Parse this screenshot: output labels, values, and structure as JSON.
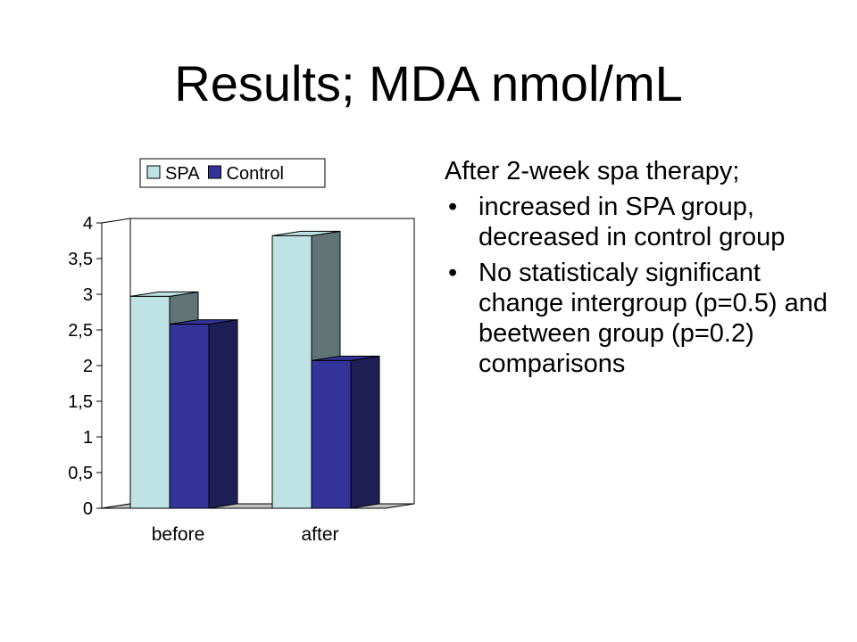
{
  "slide": {
    "title": "Results; MDA nmol/mL"
  },
  "text": {
    "intro": "After 2-week spa therapy;",
    "bullets": [
      "increased in SPA group, decreased in control group",
      "No statisticaly significant change intergroup (p=0.5) and beetween group (p=0.2) comparisons"
    ],
    "bullet_glyph": "•"
  },
  "chart_data": {
    "type": "bar",
    "style": "3d-clustered",
    "categories": [
      "before",
      "after"
    ],
    "series": [
      {
        "name": "SPA",
        "values": [
          2.97,
          3.82
        ],
        "color": "#bfe3e4",
        "side_color": "#607476"
      },
      {
        "name": "Control",
        "values": [
          2.58,
          2.07
        ],
        "color": "#33339a",
        "side_color": "#1f1f55"
      }
    ],
    "y_ticks": [
      "0",
      "0,5",
      "1",
      "1,5",
      "2",
      "2,5",
      "3",
      "3,5",
      "4"
    ],
    "ylim": [
      0,
      4
    ],
    "legend_position": "top",
    "grid": false,
    "title": "",
    "xlabel": "",
    "ylabel": ""
  }
}
